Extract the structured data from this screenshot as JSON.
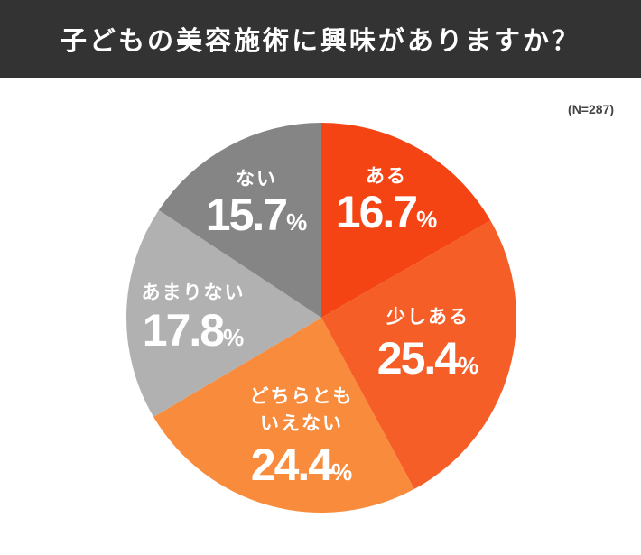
{
  "chart_data": {
    "type": "pie",
    "title": "子どもの美容施術に興味がありますか？",
    "sample_size": "(N=287)",
    "start": "top",
    "direction": "clockwise",
    "slices": [
      {
        "label": "ある",
        "value": 16.7,
        "pct_label": "16.7",
        "color": "#f54414"
      },
      {
        "label": "少しある",
        "value": 25.4,
        "pct_label": "25.4",
        "color": "#f65e28"
      },
      {
        "label": "どちらともいえない",
        "label_lines": [
          "どちらとも",
          "いえない"
        ],
        "value": 24.4,
        "pct_label": "24.4",
        "color": "#f88b3c"
      },
      {
        "label": "あまりない",
        "value": 17.8,
        "pct_label": "17.8",
        "color": "#b1b1b1"
      },
      {
        "label": "ない",
        "value": 15.7,
        "pct_label": "15.7",
        "color": "#858585"
      }
    ],
    "percent_sign": "%"
  }
}
